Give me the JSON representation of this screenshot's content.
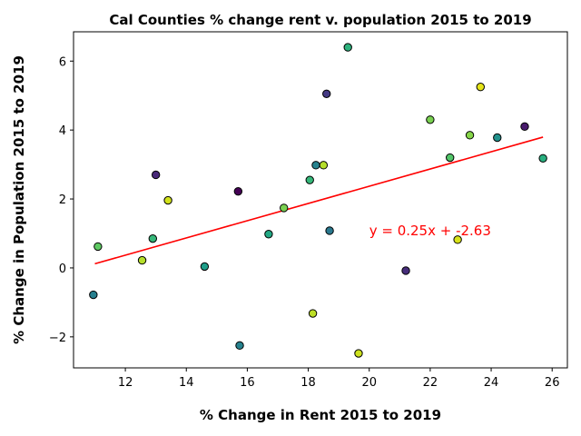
{
  "chart_data": {
    "type": "scatter",
    "title": "Cal Counties % change rent v. population 2015 to 2019",
    "xlabel": "% Change in Rent 2015 to 2019",
    "ylabel": "% Change in Population 2015 to 2019",
    "xlim": [
      10.3,
      26.5
    ],
    "ylim": [
      -2.9,
      6.85
    ],
    "xticks": [
      12,
      14,
      16,
      18,
      20,
      22,
      24,
      26
    ],
    "yticks": [
      -2,
      0,
      2,
      4,
      6
    ],
    "grid": false,
    "points": [
      {
        "x": 10.95,
        "y": -0.78,
        "color": "#277f8e"
      },
      {
        "x": 11.1,
        "y": 0.62,
        "color": "#5ec962"
      },
      {
        "x": 12.55,
        "y": 0.22,
        "color": "#b5de2b"
      },
      {
        "x": 12.9,
        "y": 0.85,
        "color": "#35b779"
      },
      {
        "x": 13.0,
        "y": 2.7,
        "color": "#482878"
      },
      {
        "x": 13.4,
        "y": 1.96,
        "color": "#d2e21b"
      },
      {
        "x": 14.6,
        "y": 0.04,
        "color": "#1f9e89"
      },
      {
        "x": 15.7,
        "y": 2.22,
        "color": "#440154"
      },
      {
        "x": 15.75,
        "y": -2.25,
        "color": "#26828e"
      },
      {
        "x": 16.7,
        "y": 0.98,
        "color": "#22a884"
      },
      {
        "x": 17.2,
        "y": 1.74,
        "color": "#7ad151"
      },
      {
        "x": 18.05,
        "y": 2.55,
        "color": "#35b779"
      },
      {
        "x": 18.15,
        "y": -1.32,
        "color": "#bddf26"
      },
      {
        "x": 18.25,
        "y": 2.98,
        "color": "#26828e"
      },
      {
        "x": 18.5,
        "y": 2.98,
        "color": "#b5de2b"
      },
      {
        "x": 18.6,
        "y": 5.05,
        "color": "#443983"
      },
      {
        "x": 18.7,
        "y": 1.08,
        "color": "#2a788e"
      },
      {
        "x": 19.3,
        "y": 6.4,
        "color": "#2db27d"
      },
      {
        "x": 19.65,
        "y": -2.48,
        "color": "#cde11d"
      },
      {
        "x": 21.2,
        "y": -0.08,
        "color": "#472d7b"
      },
      {
        "x": 22.0,
        "y": 4.3,
        "color": "#7ad151"
      },
      {
        "x": 22.65,
        "y": 3.2,
        "color": "#52c569"
      },
      {
        "x": 22.9,
        "y": 0.82,
        "color": "#d8e219"
      },
      {
        "x": 23.3,
        "y": 3.85,
        "color": "#86d549"
      },
      {
        "x": 23.65,
        "y": 5.25,
        "color": "#e5e419"
      },
      {
        "x": 24.2,
        "y": 3.78,
        "color": "#21918c"
      },
      {
        "x": 25.1,
        "y": 4.1,
        "color": "#481a6c"
      },
      {
        "x": 25.7,
        "y": 3.18,
        "color": "#29af7f"
      }
    ],
    "regression": {
      "slope": 0.25,
      "intercept": -2.63,
      "x_start": 11.0,
      "x_end": 25.7,
      "color": "#ff0000",
      "label": "y = 0.25x + -2.63",
      "label_at": [
        20.0,
        1.0
      ]
    }
  }
}
